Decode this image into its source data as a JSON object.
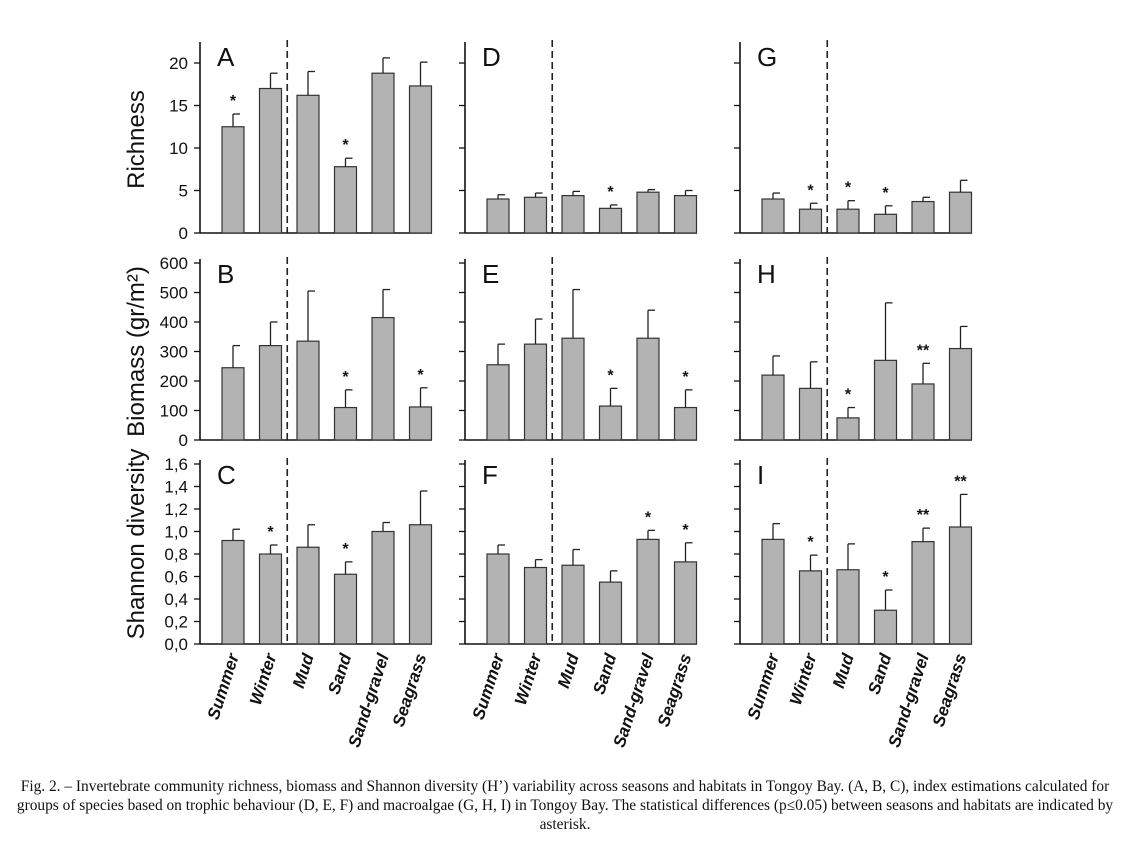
{
  "caption": "Fig. 2. – Invertebrate community richness, biomass and Shannon diversity (H’) variability across seasons and habitats in Tongoy Bay. (A, B, C), index estimations calculated for groups of species based on trophic behaviour (D, E, F) and macroalgae (G, H, I) in Tongoy Bay. The statistical differences (p≤0.05) between seasons and habitats are indicated by asterisk.",
  "colors": {
    "bar": "#b3b3b3",
    "bar_edge": "#333333",
    "axis": "#111111"
  },
  "chart_data": {
    "type": "bar",
    "categories": [
      "Summer",
      "Winter",
      "Mud",
      "Sand",
      "Sand-gravel",
      "Seagrass"
    ],
    "columns": [
      "invertebrate community",
      "trophic behaviour",
      "macroalgae"
    ],
    "rows": [
      {
        "ylabel": "Richness",
        "ylim": [
          0,
          22
        ],
        "ticks": [
          "0",
          "5",
          "10",
          "15",
          "20"
        ],
        "tick_values": [
          0,
          5,
          10,
          15,
          20
        ]
      },
      {
        "ylabel": "Biomass (gr/m²)",
        "ylim": [
          0,
          600
        ],
        "ticks": [
          "0",
          "100",
          "200",
          "300",
          "400",
          "500",
          "600"
        ],
        "tick_values": [
          0,
          100,
          200,
          300,
          400,
          500,
          600
        ]
      },
      {
        "ylabel": "Shannon diversity",
        "ylim": [
          0,
          1.6
        ],
        "ticks": [
          "0,0",
          "0,2",
          "0,4",
          "0,6",
          "0,8",
          "1,0",
          "1,2",
          "1,4",
          "1,6"
        ],
        "tick_values": [
          0,
          0.2,
          0.4,
          0.6,
          0.8,
          1.0,
          1.2,
          1.4,
          1.6
        ]
      }
    ],
    "panels": [
      {
        "label": "A",
        "values": [
          12.5,
          17.0,
          16.2,
          7.8,
          18.8,
          17.3
        ],
        "errors": [
          1.5,
          1.8,
          2.8,
          1.0,
          1.8,
          2.8
        ],
        "sig": [
          "*",
          "",
          "",
          "*",
          "",
          ""
        ]
      },
      {
        "label": "D",
        "values": [
          4.0,
          4.2,
          4.4,
          2.9,
          4.8,
          4.4
        ],
        "errors": [
          0.5,
          0.5,
          0.5,
          0.4,
          0.3,
          0.6
        ],
        "sig": [
          "",
          "",
          "",
          "*",
          "",
          ""
        ]
      },
      {
        "label": "G",
        "values": [
          4.0,
          2.8,
          2.8,
          2.2,
          3.7,
          4.8
        ],
        "errors": [
          0.7,
          0.7,
          1.0,
          1.0,
          0.5,
          1.4
        ],
        "sig": [
          "",
          "*",
          "*",
          "*",
          "",
          ""
        ]
      },
      {
        "label": "B",
        "values": [
          245,
          320,
          335,
          110,
          415,
          112
        ],
        "errors": [
          75,
          80,
          170,
          60,
          95,
          65
        ],
        "sig": [
          "",
          "",
          "",
          "*",
          "",
          "*"
        ]
      },
      {
        "label": "E",
        "values": [
          255,
          325,
          345,
          115,
          345,
          110
        ],
        "errors": [
          70,
          85,
          165,
          60,
          95,
          60
        ],
        "sig": [
          "",
          "",
          "",
          "*",
          "",
          "*"
        ]
      },
      {
        "label": "H",
        "values": [
          220,
          175,
          75,
          270,
          190,
          310
        ],
        "errors": [
          65,
          90,
          35,
          195,
          70,
          75
        ],
        "sig": [
          "",
          "",
          "*",
          "",
          "**",
          ""
        ]
      },
      {
        "label": "C",
        "values": [
          0.92,
          0.8,
          0.86,
          0.62,
          1.0,
          1.06
        ],
        "errors": [
          0.1,
          0.08,
          0.2,
          0.11,
          0.08,
          0.3
        ],
        "sig": [
          "",
          "*",
          "",
          "*",
          "",
          ""
        ]
      },
      {
        "label": "F",
        "values": [
          0.8,
          0.68,
          0.7,
          0.55,
          0.93,
          0.73
        ],
        "errors": [
          0.08,
          0.07,
          0.14,
          0.1,
          0.08,
          0.17
        ],
        "sig": [
          "",
          "",
          "",
          "",
          "*",
          "*"
        ]
      },
      {
        "label": "I",
        "values": [
          0.93,
          0.65,
          0.66,
          0.3,
          0.91,
          1.04
        ],
        "errors": [
          0.14,
          0.14,
          0.23,
          0.18,
          0.12,
          0.29
        ],
        "sig": [
          "",
          "*",
          "",
          "*",
          "**",
          "**"
        ]
      }
    ]
  }
}
